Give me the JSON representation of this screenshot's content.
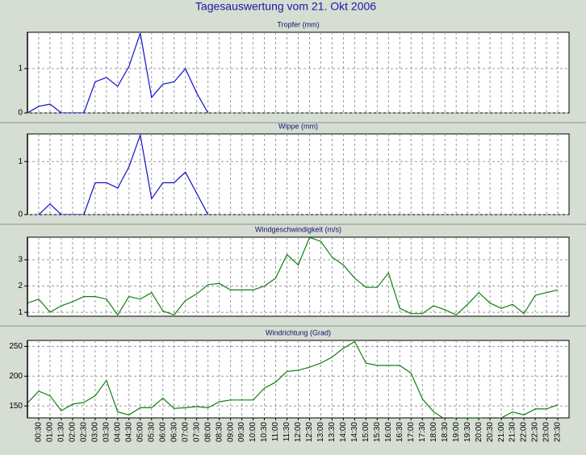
{
  "title": "Tagesauswertung vom 21. Okt 2006",
  "chart_data": [
    {
      "type": "line",
      "title": "Tropfer (mm)",
      "ylim": [
        0,
        1.82
      ],
      "yticks": [
        0,
        1
      ],
      "grid": true,
      "series": [
        {
          "name": "Tropfer",
          "color": "#1010c8",
          "values": [
            0,
            0.15,
            0.2,
            0,
            0,
            0,
            0.7,
            0.8,
            0.6,
            1.05,
            1.8,
            0.35,
            0.65,
            0.7,
            1.0,
            0.45,
            0,
            null,
            null,
            null,
            null,
            null,
            null,
            null,
            null,
            null,
            null,
            null,
            null,
            null,
            null,
            null,
            null,
            null,
            null,
            null,
            null,
            null,
            null,
            null,
            null,
            null,
            null,
            null,
            null,
            null,
            null,
            null
          ]
        }
      ]
    },
    {
      "type": "line",
      "title": "Wippe (mm)",
      "ylim": [
        0,
        1.52
      ],
      "yticks": [
        0,
        1
      ],
      "grid": true,
      "series": [
        {
          "name": "Wippe",
          "color": "#1010c8",
          "values": [
            null,
            0,
            0.2,
            0,
            0,
            0,
            0.6,
            0.6,
            0.5,
            0.9,
            1.5,
            0.3,
            0.6,
            0.6,
            0.8,
            0.4,
            0,
            null,
            null,
            null,
            null,
            null,
            null,
            null,
            null,
            null,
            null,
            null,
            null,
            null,
            null,
            null,
            null,
            null,
            null,
            null,
            null,
            null,
            null,
            null,
            null,
            null,
            null,
            null,
            null,
            null,
            null,
            null
          ]
        }
      ]
    },
    {
      "type": "line",
      "title": "Windgeschwindigkeit (m/s)",
      "ylim": [
        0.85,
        3.86
      ],
      "yticks": [
        1,
        2,
        3
      ],
      "grid": true,
      "series": [
        {
          "name": "Windgeschwindigkeit",
          "color": "#108010",
          "values": [
            1.35,
            1.5,
            1.0,
            1.25,
            1.4,
            1.6,
            1.6,
            1.5,
            0.9,
            1.6,
            1.5,
            1.75,
            1.05,
            0.9,
            1.45,
            1.7,
            2.05,
            2.1,
            1.85,
            1.85,
            1.85,
            2.0,
            2.3,
            3.2,
            2.8,
            3.85,
            3.7,
            3.1,
            2.8,
            2.3,
            1.95,
            1.95,
            2.5,
            1.15,
            0.95,
            0.95,
            1.25,
            1.1,
            0.9,
            1.3,
            1.75,
            1.35,
            1.15,
            1.3,
            0.95,
            1.65,
            1.75,
            1.85
          ]
        }
      ]
    },
    {
      "type": "line",
      "title": "Windrichtung (Grad)",
      "ylim": [
        130,
        260
      ],
      "yticks": [
        150,
        200,
        250
      ],
      "grid": true,
      "categories": [
        null,
        "00:30",
        "01:00",
        "01:30",
        "02:00",
        "02:30",
        "03:00",
        "03:30",
        "04:00",
        "04:30",
        "05:00",
        "05:30",
        "06:00",
        "06:30",
        "07:00",
        "07:30",
        "08:00",
        "08:30",
        "09:00",
        "09:30",
        "10:00",
        "10:30",
        "11:00",
        "11:30",
        "12:00",
        "12:30",
        "13:00",
        "13:30",
        "14:00",
        "14:30",
        "15:00",
        "15:30",
        "16:00",
        "16:30",
        "17:00",
        "17:30",
        "18:00",
        "18:30",
        "19:00",
        "19:30",
        "20:00",
        "20:30",
        "21:00",
        "21:30",
        "22:00",
        "22:30",
        "23:00",
        "23:30"
      ],
      "series": [
        {
          "name": "Windrichtung",
          "color": "#108010",
          "values": [
            155,
            175,
            167,
            142,
            153,
            156,
            167,
            193,
            140,
            135,
            147,
            147,
            163,
            146,
            147,
            149,
            147,
            157,
            160,
            160,
            160,
            180,
            190,
            208,
            210,
            215,
            222,
            232,
            247,
            258,
            222,
            218,
            218,
            218,
            205,
            162,
            140,
            128,
            130,
            130,
            130,
            128,
            130,
            140,
            135,
            145,
            145,
            152
          ]
        }
      ]
    }
  ]
}
